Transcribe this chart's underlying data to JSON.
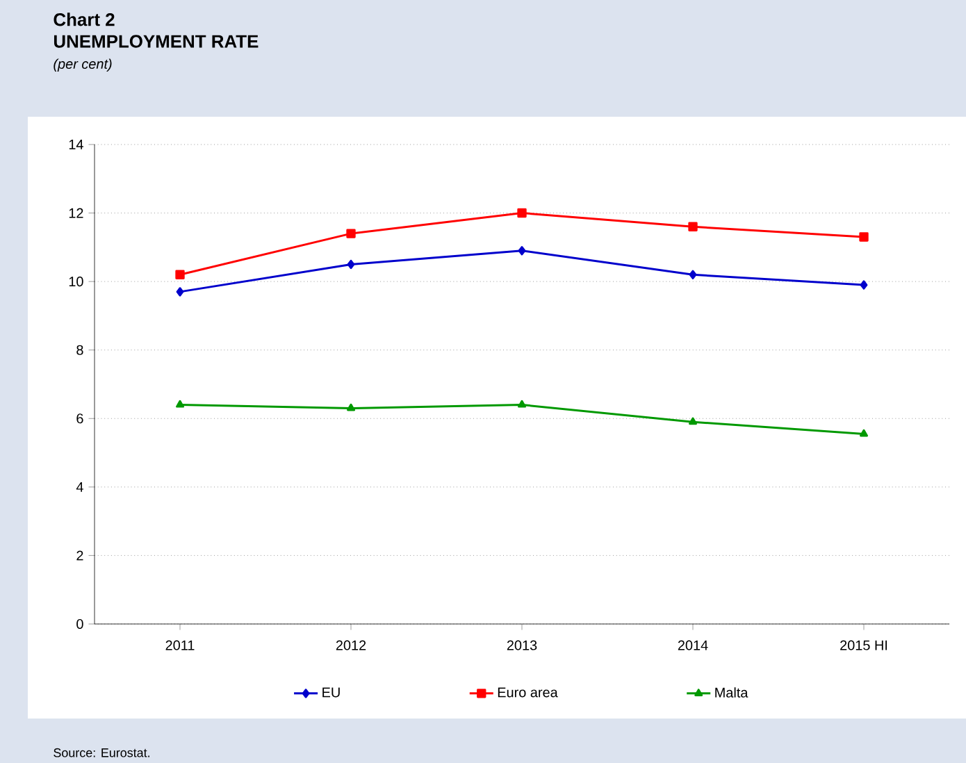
{
  "chart_data": {
    "type": "line",
    "title": "Chart 2",
    "subtitle": "UNEMPLOYMENT RATE",
    "ylabel": "(per cent)",
    "categories": [
      "2011",
      "2012",
      "2013",
      "2014",
      "2015 HI"
    ],
    "series": [
      {
        "name": "EU",
        "color": "#0000cc",
        "marker": "diamond",
        "values": [
          9.7,
          10.5,
          10.9,
          10.2,
          9.9
        ]
      },
      {
        "name": "Euro area",
        "color": "#ff0000",
        "marker": "square",
        "values": [
          10.2,
          11.4,
          12.0,
          11.6,
          11.3
        ]
      },
      {
        "name": "Malta",
        "color": "#009900",
        "marker": "triangle",
        "values": [
          6.4,
          6.3,
          6.4,
          5.9,
          5.55
        ]
      }
    ],
    "ylim": [
      0,
      14
    ],
    "yticks": [
      0,
      2,
      4,
      6,
      8,
      10,
      12,
      14
    ],
    "grid": "y",
    "legend": "bottom",
    "line_style": "solid",
    "annotations": [
      "Source: Eurostat."
    ]
  }
}
